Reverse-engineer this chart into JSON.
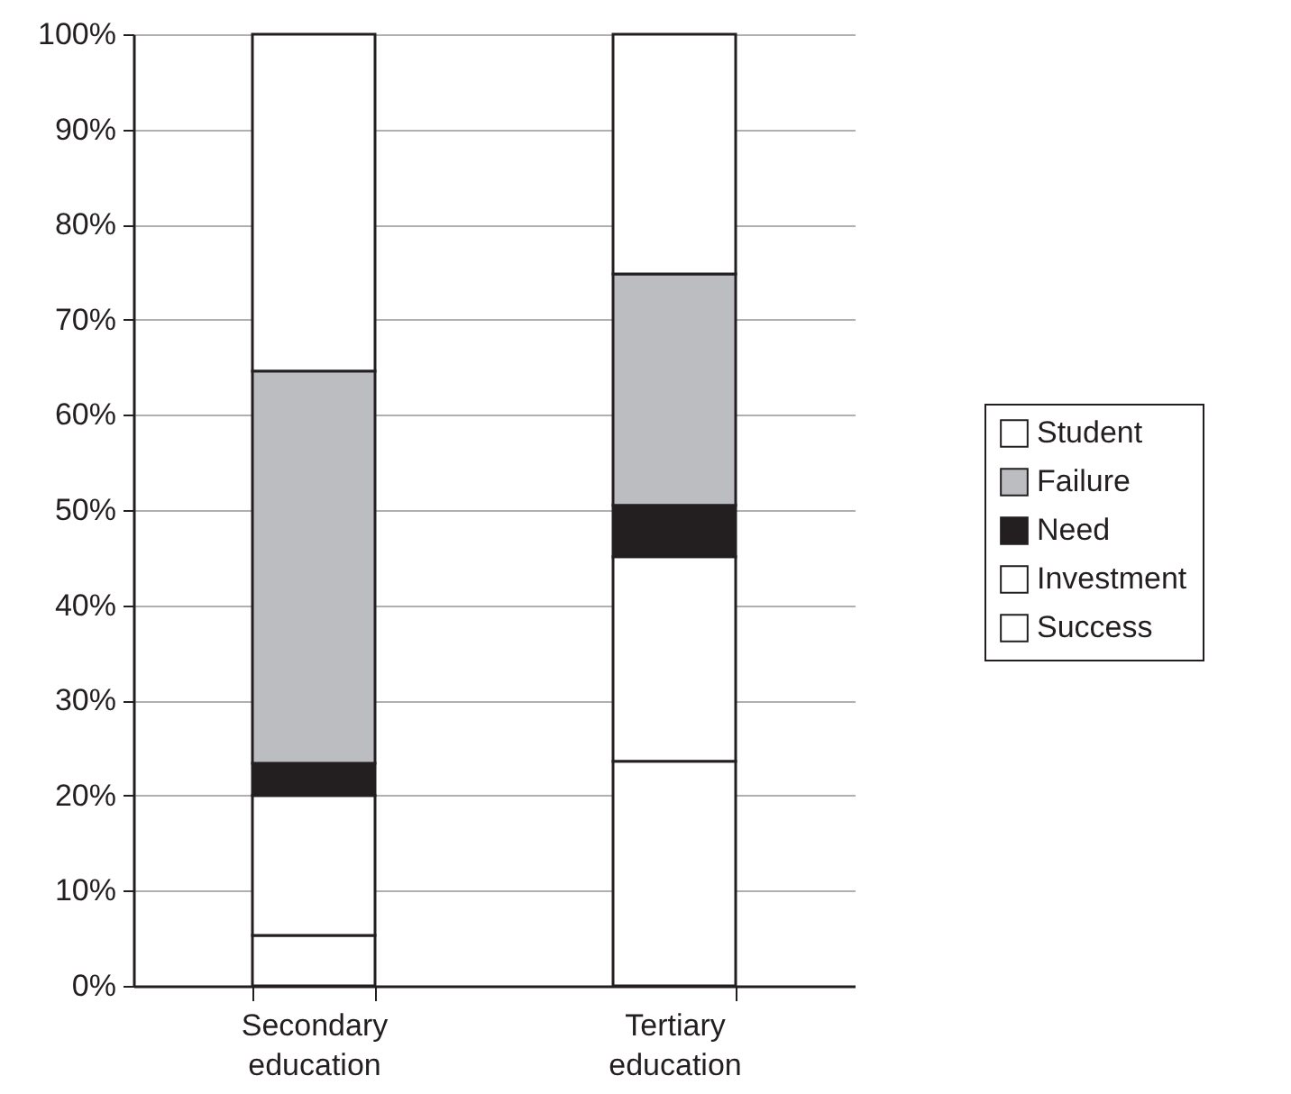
{
  "chart_data": {
    "type": "bar",
    "stacked": true,
    "categories": [
      "Secondary education",
      "Tertiary education"
    ],
    "series": [
      {
        "name": "Success",
        "color": "#ffffff",
        "values": [
          5.3,
          23.6
        ]
      },
      {
        "name": "Investment",
        "color": "#ffffff",
        "values": [
          14.7,
          21.5
        ]
      },
      {
        "name": "Need",
        "color": "#231f20",
        "values": [
          3.4,
          5.4
        ]
      },
      {
        "name": "Failure",
        "color": "#bcbdc0",
        "values": [
          41.2,
          24.3
        ]
      },
      {
        "name": "Student",
        "color": "#ffffff",
        "values": [
          35.4,
          25.2
        ]
      }
    ],
    "ylim": [
      0,
      100
    ],
    "yticks": [
      {
        "value": 0,
        "label": "0%"
      },
      {
        "value": 10,
        "label": "10%"
      },
      {
        "value": 20,
        "label": "20%"
      },
      {
        "value": 30,
        "label": "30%"
      },
      {
        "value": 40,
        "label": "40%"
      },
      {
        "value": 50,
        "label": "50%"
      },
      {
        "value": 60,
        "label": "60%"
      },
      {
        "value": 70,
        "label": "70%"
      },
      {
        "value": 80,
        "label": "80%"
      },
      {
        "value": 90,
        "label": "90%"
      },
      {
        "value": 100,
        "label": "100%"
      }
    ],
    "grid": "y",
    "legend": "right"
  }
}
